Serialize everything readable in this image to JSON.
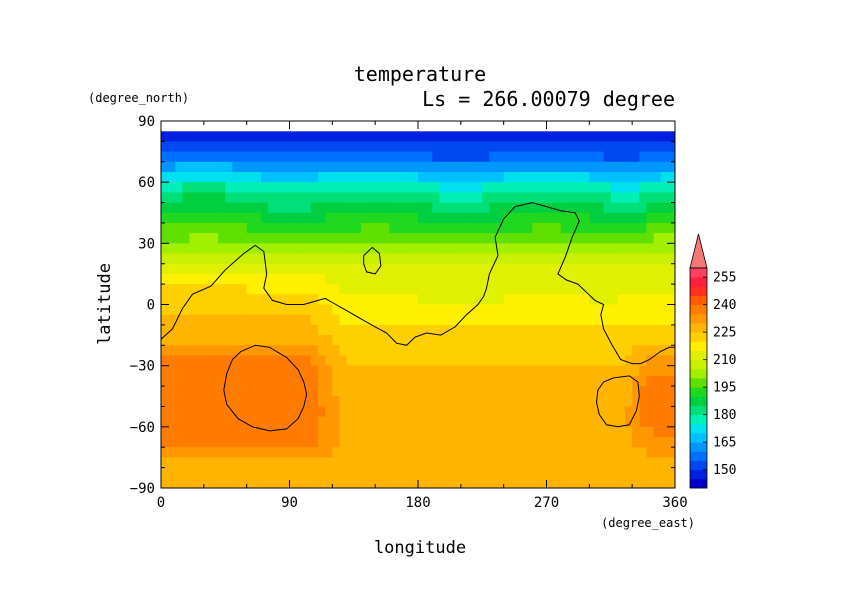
{
  "chart_data": {
    "type": "heatmap",
    "title": "temperature",
    "subtitle": "Ls = 266.00079 degree",
    "xlabel": "longitude",
    "ylabel": "latitude",
    "x_unit": "(degree_east)",
    "y_unit": "(degree_north)",
    "xlim": [
      0,
      360
    ],
    "ylim": [
      -90,
      90
    ],
    "x_ticks": [
      0,
      90,
      180,
      270,
      360
    ],
    "y_ticks": [
      -90,
      -60,
      -30,
      0,
      30,
      60,
      90
    ],
    "colorbar": {
      "levels": [
        140,
        145,
        150,
        155,
        160,
        165,
        170,
        175,
        180,
        185,
        190,
        195,
        200,
        205,
        210,
        215,
        220,
        225,
        230,
        235,
        240,
        245,
        250,
        255,
        260
      ],
      "labels": [
        150,
        165,
        180,
        195,
        210,
        225,
        240,
        255
      ],
      "colors": [
        "#0000c8",
        "#0020e0",
        "#0048f0",
        "#0070ff",
        "#0098ff",
        "#00c0ff",
        "#00e0ee",
        "#00f0b8",
        "#00e078",
        "#00d040",
        "#20d820",
        "#60e000",
        "#a0f000",
        "#c8f000",
        "#e0f000",
        "#fff000",
        "#ffd000",
        "#ffb400",
        "#ff9800",
        "#ff7c00",
        "#ff5a00",
        "#ff3020",
        "#ff2040",
        "#ff4060"
      ],
      "overflow_color": "#f47878"
    },
    "field_data": {
      "latitudes": [
        85,
        80,
        75,
        70,
        65,
        60,
        55,
        50,
        45,
        40,
        35,
        30,
        25,
        20,
        15,
        10,
        5,
        0,
        -5,
        -10,
        -15,
        -20,
        -25,
        -30,
        -35,
        -40,
        -45,
        -50,
        -55,
        -60,
        -65,
        -70,
        -75,
        -80,
        -85
      ],
      "profile_west": [
        147,
        149,
        153,
        160,
        168,
        175,
        181,
        185,
        189,
        193,
        197,
        202,
        207,
        212,
        216,
        219,
        221,
        223,
        225,
        226,
        227,
        228,
        234,
        237,
        238,
        238,
        238,
        238,
        238,
        237,
        236,
        236,
        230,
        226,
        226
      ],
      "profile_mid": [
        147,
        149,
        153,
        158,
        166,
        174,
        180,
        184,
        188,
        192,
        196,
        200,
        205,
        209,
        212,
        213,
        214,
        216,
        218,
        220,
        222,
        224,
        224,
        225,
        226,
        225,
        226,
        228,
        229,
        228,
        228,
        228,
        228,
        226,
        226
      ],
      "profile_east": [
        147,
        149,
        153,
        160,
        168,
        175,
        181,
        185,
        190,
        194,
        198,
        203,
        207,
        211,
        213,
        214,
        215,
        217,
        219,
        221,
        224,
        226,
        229,
        233,
        236,
        238,
        238,
        238,
        238,
        236,
        234,
        233,
        228,
        226,
        226
      ]
    },
    "contour_lines": [
      {
        "name": "continent",
        "points": [
          [
            0,
            -17
          ],
          [
            8,
            -12
          ],
          [
            15,
            -2
          ],
          [
            22,
            5
          ],
          [
            35,
            9
          ],
          [
            45,
            17
          ],
          [
            58,
            25
          ],
          [
            66,
            29
          ],
          [
            72,
            26
          ],
          [
            74,
            15
          ],
          [
            72,
            8
          ],
          [
            78,
            2
          ],
          [
            88,
            0
          ],
          [
            100,
            0
          ],
          [
            110,
            2
          ],
          [
            115,
            3
          ],
          [
            120,
            1
          ],
          [
            130,
            -3
          ],
          [
            140,
            -7
          ],
          [
            150,
            -11
          ],
          [
            158,
            -14
          ],
          [
            165,
            -19
          ],
          [
            172,
            -20
          ],
          [
            178,
            -16
          ],
          [
            186,
            -14
          ],
          [
            196,
            -15
          ],
          [
            206,
            -11
          ],
          [
            214,
            -5
          ],
          [
            222,
            0
          ],
          [
            226,
            4
          ],
          [
            228,
            8
          ],
          [
            230,
            15
          ],
          [
            236,
            24
          ],
          [
            234,
            33
          ],
          [
            240,
            42
          ],
          [
            248,
            48
          ],
          [
            260,
            50
          ],
          [
            270,
            48
          ],
          [
            280,
            46
          ],
          [
            290,
            45
          ],
          [
            293,
            41
          ],
          [
            288,
            33
          ],
          [
            283,
            23
          ],
          [
            278,
            15
          ],
          [
            284,
            12
          ],
          [
            292,
            10
          ],
          [
            298,
            6
          ],
          [
            304,
            2
          ],
          [
            310,
            0
          ],
          [
            308,
            -5
          ],
          [
            310,
            -12
          ],
          [
            316,
            -20
          ],
          [
            322,
            -27
          ],
          [
            330,
            -29
          ],
          [
            336,
            -29
          ],
          [
            342,
            -27
          ],
          [
            350,
            -23
          ],
          [
            356,
            -21
          ],
          [
            360,
            -21
          ]
        ]
      },
      {
        "name": "island",
        "points": [
          [
            142,
            24
          ],
          [
            148,
            28
          ],
          [
            153,
            25
          ],
          [
            154,
            19
          ],
          [
            150,
            15
          ],
          [
            144,
            16
          ],
          [
            142,
            20
          ],
          [
            142,
            24
          ]
        ]
      },
      {
        "name": "western-basin",
        "points": [
          [
            56,
            -23
          ],
          [
            66,
            -20
          ],
          [
            76,
            -21
          ],
          [
            88,
            -26
          ],
          [
            96,
            -32
          ],
          [
            100,
            -38
          ],
          [
            102,
            -44
          ],
          [
            100,
            -50
          ],
          [
            96,
            -56
          ],
          [
            88,
            -61
          ],
          [
            76,
            -62
          ],
          [
            64,
            -60
          ],
          [
            54,
            -56
          ],
          [
            46,
            -49
          ],
          [
            44,
            -42
          ],
          [
            46,
            -34
          ],
          [
            50,
            -27
          ],
          [
            56,
            -23
          ]
        ]
      },
      {
        "name": "eastern-basin",
        "points": [
          [
            317,
            -36
          ],
          [
            328,
            -35
          ],
          [
            334,
            -38
          ],
          [
            335,
            -45
          ],
          [
            333,
            -52
          ],
          [
            328,
            -59
          ],
          [
            320,
            -60
          ],
          [
            312,
            -59
          ],
          [
            307,
            -54
          ],
          [
            305,
            -48
          ],
          [
            306,
            -42
          ],
          [
            310,
            -38
          ],
          [
            317,
            -36
          ]
        ]
      }
    ]
  }
}
